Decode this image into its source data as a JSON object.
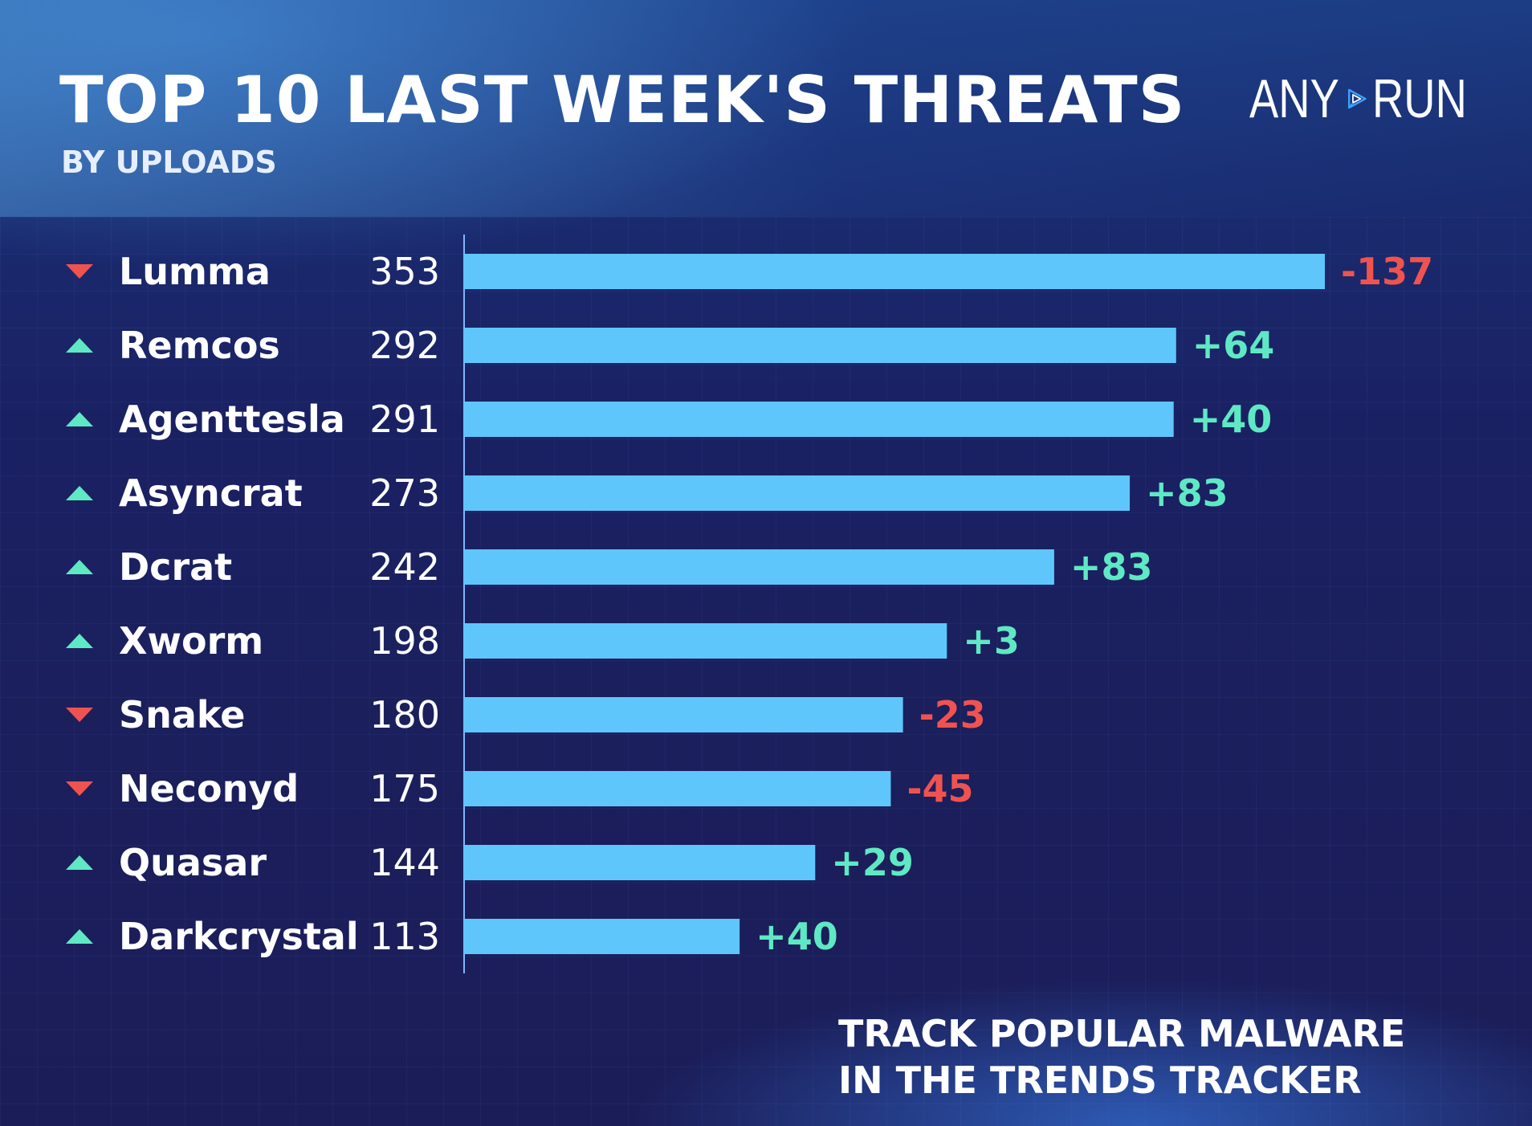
{
  "header": {
    "title": "TOP 10 LAST WEEK'S THREATS",
    "subtitle": "BY UPLOADS"
  },
  "logo": {
    "left_text": "ANY",
    "right_text": "RUN",
    "icon": "play-triangle-icon"
  },
  "footer": {
    "line1": "TRACK POPULAR MALWARE",
    "line2": "IN THE TRENDS TRACKER"
  },
  "colors": {
    "bar": "#5fc6fb",
    "up": "#5fe8c4",
    "down": "#ef5350",
    "text": "#ffffff"
  },
  "chart_data": {
    "type": "bar",
    "orientation": "horizontal",
    "title": "TOP 10 LAST WEEK'S THREATS",
    "subtitle": "BY UPLOADS",
    "categories": [
      "Lumma",
      "Remcos",
      "Agenttesla",
      "Asyncrat",
      "Dcrat",
      "Xworm",
      "Snake",
      "Neconyd",
      "Quasar",
      "Darkcrystal"
    ],
    "values": [
      353,
      292,
      291,
      273,
      242,
      198,
      180,
      175,
      144,
      113
    ],
    "changes": [
      "-137",
      "+64",
      "+40",
      "+83",
      "+83",
      "+3",
      "-23",
      "-45",
      "+29",
      "+40"
    ],
    "trend": [
      "down",
      "up",
      "up",
      "up",
      "up",
      "up",
      "down",
      "down",
      "up",
      "up"
    ],
    "xlim": [
      0,
      353
    ],
    "grid": false,
    "legend": "none"
  }
}
